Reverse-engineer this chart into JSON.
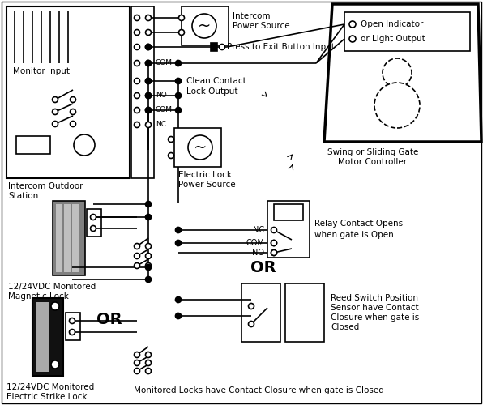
{
  "bg": "#ffffff",
  "lc": "#000000",
  "labels": {
    "monitor_input": "Monitor Input",
    "intercom_outdoor_1": "Intercom Outdoor",
    "intercom_outdoor_2": "Station",
    "intercom_power_1": "Intercom",
    "intercom_power_2": "Power Source",
    "press_exit": "Press to Exit Button Input",
    "clean_contact_1": "Clean Contact",
    "clean_contact_2": "Lock Output",
    "elec_lock_pwr_1": "Electric Lock",
    "elec_lock_pwr_2": "Power Source",
    "mag_lock_1": "12/24VDC Monitored",
    "mag_lock_2": "Magnetic Lock",
    "OR_left": "OR",
    "elec_strike_1": "12/24VDC Monitored",
    "elec_strike_2": "Electric Strike Lock",
    "swing_gate_1": "Swing or Sliding Gate",
    "swing_gate_2": "Motor Controller",
    "open_indicator_1": "Open Indicator",
    "open_indicator_2": "or Light Output",
    "relay_1": "Relay Contact Opens",
    "relay_2": "when gate is Open",
    "OR_right": "OR",
    "reed_1": "Reed Switch Position",
    "reed_2": "Sensor have Contact",
    "reed_3": "Closure when gate is",
    "reed_4": "Closed",
    "bottom_note": "Monitored Locks have Contact Closure when gate is Closed",
    "NC": "NC",
    "COM": "COM",
    "NO": "NO"
  }
}
